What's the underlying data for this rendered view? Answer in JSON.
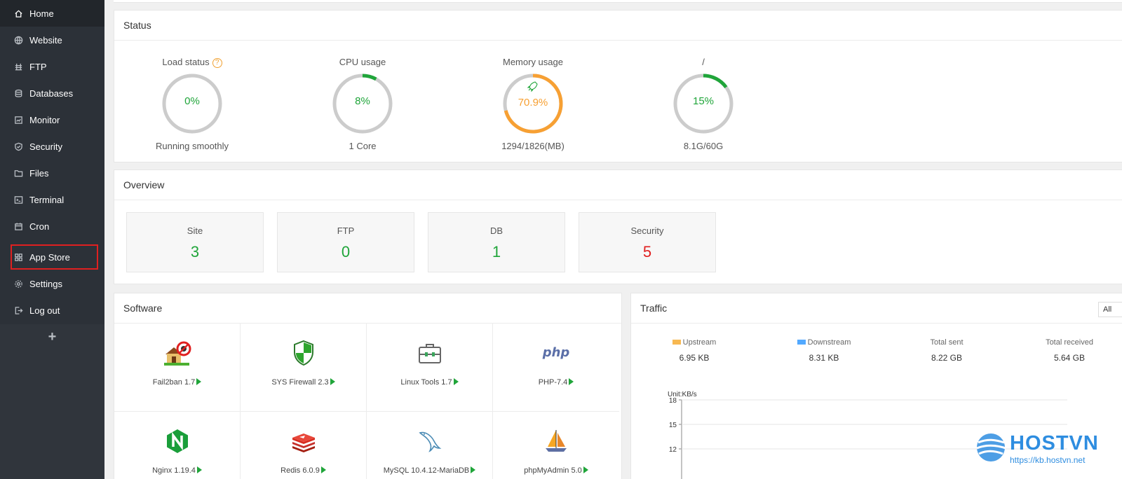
{
  "sidebar": {
    "items": [
      {
        "label": "Home",
        "icon": "home-icon"
      },
      {
        "label": "Website",
        "icon": "globe-icon"
      },
      {
        "label": "FTP",
        "icon": "ftp-icon"
      },
      {
        "label": "Databases",
        "icon": "database-icon"
      },
      {
        "label": "Monitor",
        "icon": "monitor-icon"
      },
      {
        "label": "Security",
        "icon": "shield-icon"
      },
      {
        "label": "Files",
        "icon": "folder-icon"
      },
      {
        "label": "Terminal",
        "icon": "terminal-icon"
      },
      {
        "label": "Cron",
        "icon": "calendar-icon"
      },
      {
        "label": "App Store",
        "icon": "grid-icon"
      },
      {
        "label": "Settings",
        "icon": "gear-icon"
      },
      {
        "label": "Log out",
        "icon": "logout-icon"
      }
    ],
    "add_label": "+"
  },
  "status": {
    "title": "Status",
    "gauges": [
      {
        "label": "Load status",
        "value": "0%",
        "percent": 0,
        "sub": "Running smoothly",
        "color": "#20a53a"
      },
      {
        "label": "CPU usage",
        "value": "8%",
        "percent": 8,
        "sub": "1 Core",
        "color": "#20a53a"
      },
      {
        "label": "Memory usage",
        "value": "70.9%",
        "percent": 70.9,
        "sub": "1294/1826(MB)",
        "color": "#f7a033"
      },
      {
        "label": "/",
        "value": "15%",
        "percent": 15,
        "sub": "8.1G/60G",
        "color": "#20a53a"
      }
    ],
    "help_glyph": "?"
  },
  "overview": {
    "title": "Overview",
    "items": [
      {
        "label": "Site",
        "value": "3",
        "color": "#20a53a"
      },
      {
        "label": "FTP",
        "value": "0",
        "color": "#20a53a"
      },
      {
        "label": "DB",
        "value": "1",
        "color": "#20a53a"
      },
      {
        "label": "Security",
        "value": "5",
        "color": "#e02020"
      }
    ]
  },
  "software": {
    "title": "Software",
    "items": [
      {
        "name": "Fail2ban 1.7",
        "icon": "fail2ban-icon"
      },
      {
        "name": "SYS Firewall 2.3",
        "icon": "firewall-icon"
      },
      {
        "name": "Linux Tools 1.7",
        "icon": "toolbox-icon"
      },
      {
        "name": "PHP-7.4",
        "icon": "php-icon"
      },
      {
        "name": "Nginx 1.19.4",
        "icon": "nginx-icon"
      },
      {
        "name": "Redis 6.0.9",
        "icon": "redis-icon"
      },
      {
        "name": "MySQL 10.4.12-MariaDB",
        "icon": "mysql-icon"
      },
      {
        "name": "phpMyAdmin 5.0",
        "icon": "phpmyadmin-icon"
      }
    ],
    "php_logo_text": "php"
  },
  "traffic": {
    "title": "Traffic",
    "filter": "All",
    "upstream": {
      "label": "Upstream",
      "value": "6.95 KB",
      "color": "#f7b851"
    },
    "downstream": {
      "label": "Downstream",
      "value": "8.31 KB",
      "color": "#52a9ff"
    },
    "total_sent": {
      "label": "Total sent",
      "value": "8.22 GB"
    },
    "total_received": {
      "label": "Total received",
      "value": "5.64 GB"
    },
    "unit": "Unit:KB/s",
    "y_ticks": [
      "18",
      "15",
      "12"
    ]
  },
  "watermark": {
    "brand": "HOSTVN",
    "url": "https://kb.hostvn.net"
  }
}
